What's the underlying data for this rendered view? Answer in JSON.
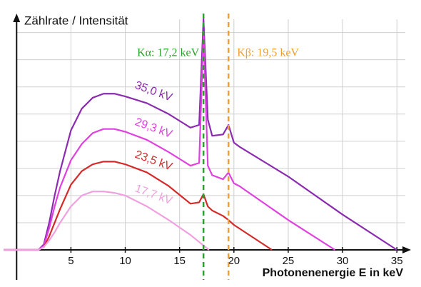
{
  "chart_data": {
    "type": "line",
    "y_label": "Zählrate / Intensität",
    "x_label": "Photonenenergie E in keV",
    "xlim": [
      -1.2,
      36.3
    ],
    "ylim": [
      0,
      8.7
    ],
    "xticks": [
      5,
      10,
      15,
      20,
      25,
      30,
      35
    ],
    "yticks": [
      1,
      2,
      3,
      4,
      5,
      6,
      7,
      8
    ],
    "grid": true,
    "annotations": [
      {
        "x": 17.2,
        "label": "Kα: 17,2 keV",
        "color": "#2ca02c"
      },
      {
        "x": 19.5,
        "label": "Kβ: 19,5 keV",
        "color": "#f0a030"
      }
    ],
    "series": [
      {
        "name": "35,0 kV",
        "color": "#8b2bb0",
        "x": [
          -1.2,
          2,
          2.5,
          3,
          3.5,
          4,
          5,
          6,
          7,
          8,
          9,
          10,
          12,
          14,
          16,
          16.8,
          17.2,
          17.6,
          18,
          19,
          19.5,
          20,
          20.5,
          25,
          30,
          35
        ],
        "values": [
          0,
          0,
          0.2,
          1.0,
          2.0,
          2.9,
          4.4,
          5.2,
          5.6,
          5.75,
          5.75,
          5.65,
          5.4,
          5.0,
          4.5,
          4.6,
          8.5,
          4.8,
          4.2,
          4.25,
          4.6,
          3.95,
          3.8,
          2.7,
          1.3,
          0
        ]
      },
      {
        "name": "29,3 kV",
        "color": "#e040e0",
        "x": [
          -1.2,
          2,
          2.5,
          3,
          3.5,
          4,
          5,
          6,
          7,
          8,
          9,
          10,
          12,
          14,
          16,
          16.8,
          17.2,
          17.6,
          18,
          19,
          19.5,
          20,
          20.5,
          25,
          29.3
        ],
        "values": [
          0,
          0,
          0.15,
          0.8,
          1.6,
          2.3,
          3.3,
          3.9,
          4.3,
          4.45,
          4.45,
          4.35,
          4.05,
          3.6,
          3.1,
          3.2,
          8.0,
          3.1,
          2.75,
          2.6,
          2.85,
          2.45,
          2.35,
          1.1,
          0
        ]
      },
      {
        "name": "23,5 kV",
        "color": "#d42a2a",
        "x": [
          -1.2,
          2,
          2.5,
          3,
          3.5,
          4,
          5,
          6,
          7,
          8,
          9,
          10,
          12,
          14,
          16,
          16.8,
          17.2,
          17.6,
          18,
          19,
          19.5,
          20,
          23.5
        ],
        "values": [
          0,
          0,
          0.1,
          0.5,
          1.0,
          1.5,
          2.4,
          2.9,
          3.15,
          3.25,
          3.25,
          3.15,
          2.85,
          2.35,
          1.7,
          1.75,
          2.05,
          1.6,
          1.45,
          1.25,
          1.1,
          0.92,
          0
        ]
      },
      {
        "name": "17,7 kV",
        "color": "#f0a0e0",
        "x": [
          -1.2,
          2,
          2.5,
          3,
          3.5,
          4,
          5,
          6,
          7,
          8,
          9,
          10,
          12,
          14,
          16,
          17.7
        ],
        "values": [
          0,
          0,
          0.1,
          0.35,
          0.65,
          1.0,
          1.6,
          2.0,
          2.15,
          2.15,
          2.1,
          2.0,
          1.6,
          1.1,
          0.55,
          0
        ]
      }
    ]
  }
}
